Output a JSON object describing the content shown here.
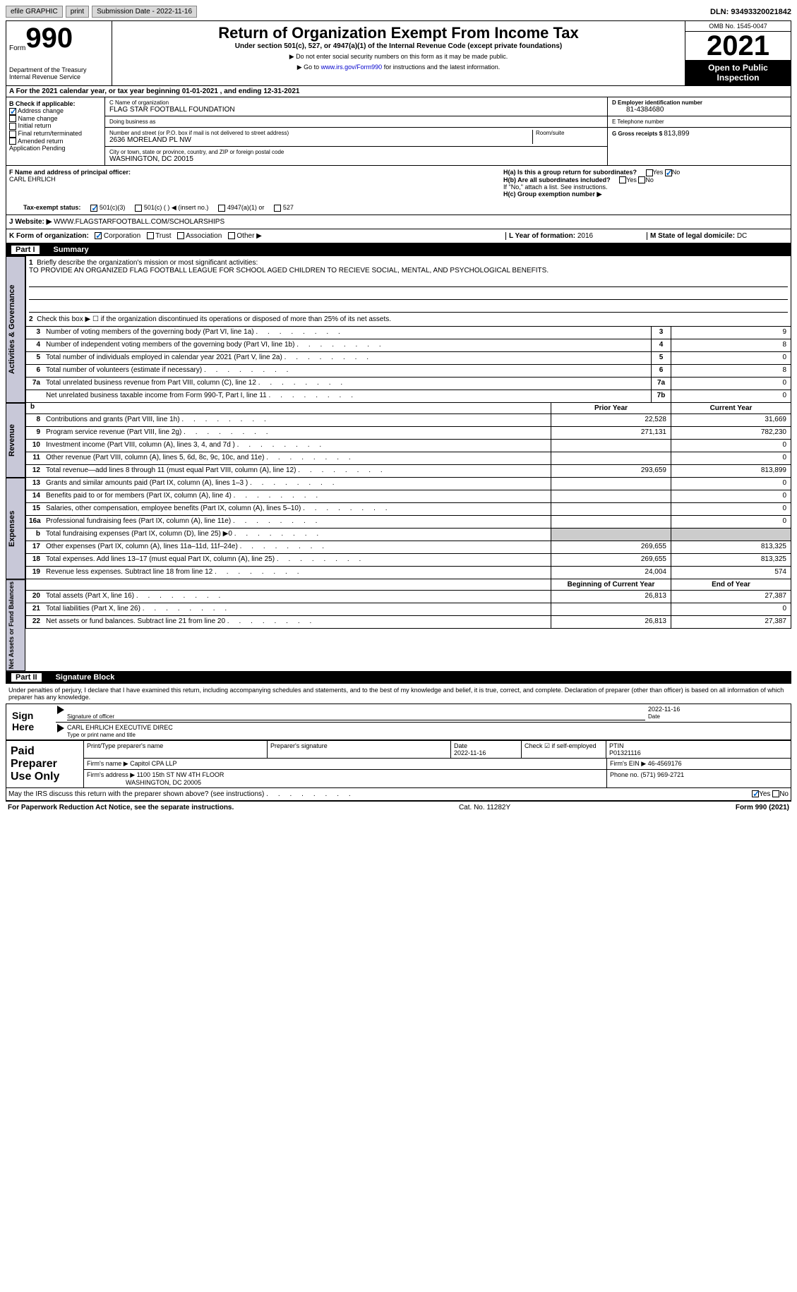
{
  "topbar": {
    "efile": "efile GRAPHIC",
    "print": "print",
    "sub_label": "Submission Date - ",
    "sub_date": "2022-11-16",
    "dln_label": "DLN: ",
    "dln": "93493320021842"
  },
  "header": {
    "form_word": "Form",
    "form_num": "990",
    "dept": "Department of the Treasury",
    "irs": "Internal Revenue Service",
    "title": "Return of Organization Exempt From Income Tax",
    "subtitle": "Under section 501(c), 527, or 4947(a)(1) of the Internal Revenue Code (except private foundations)",
    "note1": "▶ Do not enter social security numbers on this form as it may be made public.",
    "note2": "▶ Go to ",
    "link": "www.irs.gov/Form990",
    "note3": " for instructions and the latest information.",
    "omb": "OMB No. 1545-0047",
    "year": "2021",
    "public": "Open to Public Inspection"
  },
  "rowA": "A For the 2021 calendar year, or tax year beginning 01-01-2021    , and ending 12-31-2021",
  "colB": {
    "title": "B Check if applicable:",
    "items": [
      "Address change",
      "Name change",
      "Initial return",
      "Final return/terminated",
      "Amended return",
      "Application Pending"
    ],
    "checked": [
      true,
      false,
      false,
      false,
      false,
      false
    ]
  },
  "colC": {
    "name_label": "C Name of organization",
    "name": "FLAG STAR FOOTBALL FOUNDATION",
    "dba_label": "Doing business as",
    "dba": "",
    "addr_label": "Number and street (or P.O. box if mail is not delivered to street address)",
    "room_label": "Room/suite",
    "addr": "2636 MORELAND PL NW",
    "city_label": "City or town, state or province, country, and ZIP or foreign postal code",
    "city": "WASHINGTON, DC  20015"
  },
  "colD": {
    "ein_label": "D Employer identification number",
    "ein": "81-4384680",
    "tel_label": "E Telephone number",
    "tel": "",
    "gross_label": "G Gross receipts $ ",
    "gross": "813,899"
  },
  "fh": {
    "f_label": "F  Name and address of principal officer:",
    "f_name": "CARL EHRLICH",
    "ha_label": "H(a)  Is this a group return for subordinates?",
    "hb_label": "H(b)  Are all subordinates included?",
    "hb_note": "If \"No,\" attach a list. See instructions.",
    "hc_label": "H(c)  Group exemption number ▶",
    "yes": "Yes",
    "no": "No"
  },
  "tax": {
    "label": "Tax-exempt status:",
    "o1": "501(c)(3)",
    "o2": "501(c) (  ) ◀ (insert no.)",
    "o3": "4947(a)(1) or",
    "o4": "527"
  },
  "website": {
    "label": "J   Website: ▶  ",
    "url": "WWW.FLAGSTARFOOTBALL.COM/SCHOLARSHIPS"
  },
  "rowK": {
    "label": "K Form of organization:",
    "opts": [
      "Corporation",
      "Trust",
      "Association",
      "Other ▶"
    ],
    "l_label": "L Year of formation: ",
    "l_val": "2016",
    "m_label": "M State of legal domicile: ",
    "m_val": "DC"
  },
  "part1": {
    "num": "Part I",
    "title": "Summary"
  },
  "mission": {
    "n": "1",
    "label": "Briefly describe the organization's mission or most significant activities:",
    "text": "TO PROVIDE AN ORGANIZED FLAG FOOTBALL LEAGUE FOR SCHOOL AGED CHILDREN TO RECIEVE SOCIAL, MENTAL, AND PSYCHOLOGICAL BENEFITS."
  },
  "line2": "Check this box ▶ ☐  if the organization discontinued its operations or disposed of more than 25% of its net assets.",
  "gov_rows": [
    {
      "n": "3",
      "desc": "Number of voting members of the governing body (Part VI, line 1a)",
      "box": "3",
      "val": "9"
    },
    {
      "n": "4",
      "desc": "Number of independent voting members of the governing body (Part VI, line 1b)",
      "box": "4",
      "val": "8"
    },
    {
      "n": "5",
      "desc": "Total number of individuals employed in calendar year 2021 (Part V, line 2a)",
      "box": "5",
      "val": "0"
    },
    {
      "n": "6",
      "desc": "Total number of volunteers (estimate if necessary)",
      "box": "6",
      "val": "8"
    },
    {
      "n": "7a",
      "desc": "Total unrelated business revenue from Part VIII, column (C), line 12",
      "box": "7a",
      "val": "0"
    },
    {
      "n": "",
      "desc": "Net unrelated business taxable income from Form 990-T, Part I, line 11",
      "box": "7b",
      "val": "0"
    }
  ],
  "col_hdr": {
    "b": "b",
    "py": "Prior Year",
    "cy": "Current Year"
  },
  "rev_rows": [
    {
      "n": "8",
      "desc": "Contributions and grants (Part VIII, line 1h)",
      "py": "22,528",
      "cy": "31,669"
    },
    {
      "n": "9",
      "desc": "Program service revenue (Part VIII, line 2g)",
      "py": "271,131",
      "cy": "782,230"
    },
    {
      "n": "10",
      "desc": "Investment income (Part VIII, column (A), lines 3, 4, and 7d )",
      "py": "",
      "cy": "0"
    },
    {
      "n": "11",
      "desc": "Other revenue (Part VIII, column (A), lines 5, 6d, 8c, 9c, 10c, and 11e)",
      "py": "",
      "cy": "0"
    },
    {
      "n": "12",
      "desc": "Total revenue—add lines 8 through 11 (must equal Part VIII, column (A), line 12)",
      "py": "293,659",
      "cy": "813,899"
    }
  ],
  "exp_rows": [
    {
      "n": "13",
      "desc": "Grants and similar amounts paid (Part IX, column (A), lines 1–3 )",
      "py": "",
      "cy": "0"
    },
    {
      "n": "14",
      "desc": "Benefits paid to or for members (Part IX, column (A), line 4)",
      "py": "",
      "cy": "0"
    },
    {
      "n": "15",
      "desc": "Salaries, other compensation, employee benefits (Part IX, column (A), lines 5–10)",
      "py": "",
      "cy": "0"
    },
    {
      "n": "16a",
      "desc": "Professional fundraising fees (Part IX, column (A), line 11e)",
      "py": "",
      "cy": "0"
    },
    {
      "n": "b",
      "desc": "Total fundraising expenses (Part IX, column (D), line 25) ▶0",
      "py": "shade",
      "cy": "shade"
    },
    {
      "n": "17",
      "desc": "Other expenses (Part IX, column (A), lines 11a–11d, 11f–24e)",
      "py": "269,655",
      "cy": "813,325"
    },
    {
      "n": "18",
      "desc": "Total expenses. Add lines 13–17 (must equal Part IX, column (A), line 25)",
      "py": "269,655",
      "cy": "813,325"
    },
    {
      "n": "19",
      "desc": "Revenue less expenses. Subtract line 18 from line 12",
      "py": "24,004",
      "cy": "574"
    }
  ],
  "net_hdr": {
    "by": "Beginning of Current Year",
    "ey": "End of Year"
  },
  "net_rows": [
    {
      "n": "20",
      "desc": "Total assets (Part X, line 16)",
      "py": "26,813",
      "cy": "27,387"
    },
    {
      "n": "21",
      "desc": "Total liabilities (Part X, line 26)",
      "py": "",
      "cy": "0"
    },
    {
      "n": "22",
      "desc": "Net assets or fund balances. Subtract line 21 from line 20",
      "py": "26,813",
      "cy": "27,387"
    }
  ],
  "part2": {
    "num": "Part II",
    "title": "Signature Block"
  },
  "sig": {
    "penalty": "Under penalties of perjury, I declare that I have examined this return, including accompanying schedules and statements, and to the best of my knowledge and belief, it is true, correct, and complete. Declaration of preparer (other than officer) is based on all information of which preparer has any knowledge.",
    "sign_here": "Sign Here",
    "sig_label": "Signature of officer",
    "date_label": "Date",
    "date": "2022-11-16",
    "name": "CARL EHRLICH  EXECUTIVE DIREC",
    "name_label": "Type or print name and title"
  },
  "prep": {
    "title": "Paid Preparer Use Only",
    "pn_label": "Print/Type preparer's name",
    "ps_label": "Preparer's signature",
    "d_label": "Date",
    "d_val": "2022-11-16",
    "chk_label": "Check ☑ if self-employed",
    "ptin_label": "PTIN",
    "ptin": "P01321116",
    "firm_label": "Firm's name     ▶ ",
    "firm": "Capitol CPA LLP",
    "ein_label": "Firm's EIN ▶ ",
    "ein": "46-4569176",
    "addr_label": "Firm's address ▶ ",
    "addr1": "1100 15th ST NW 4TH FLOOR",
    "addr2": "WASHINGTON, DC  20005",
    "ph_label": "Phone no. ",
    "ph": "(571) 969-2721"
  },
  "may": {
    "q": "May the IRS discuss this return with the preparer shown above? (see instructions)",
    "yes": "Yes",
    "no": "No"
  },
  "footer": {
    "l": "For Paperwork Reduction Act Notice, see the separate instructions.",
    "m": "Cat. No. 11282Y",
    "r": "Form 990 (2021)"
  },
  "side_labels": {
    "gov": "Activities & Governance",
    "rev": "Revenue",
    "exp": "Expenses",
    "net": "Net Assets or Fund Balances"
  }
}
